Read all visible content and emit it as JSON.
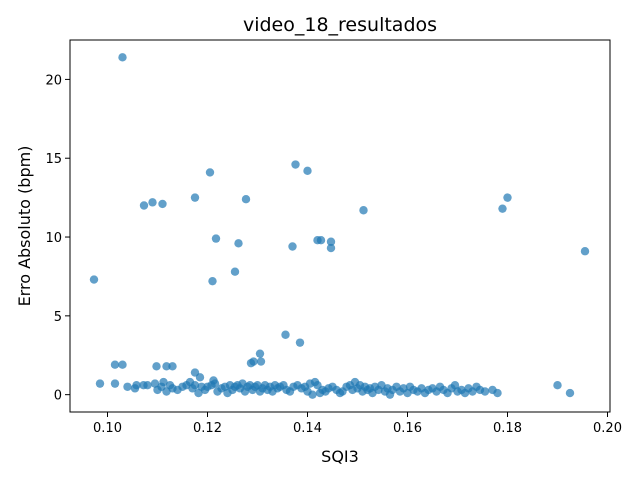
{
  "chart_data": {
    "type": "scatter",
    "title": "video_18_resultados",
    "xlabel": "SQI3",
    "ylabel": "Erro Absoluto (bpm)",
    "xlim": [
      0.0925,
      0.2005
    ],
    "ylim": [
      -1.1,
      22.5
    ],
    "xticks": [
      0.1,
      0.12,
      0.14,
      0.16,
      0.18,
      0.2
    ],
    "xtick_labels": [
      "0.10",
      "0.12",
      "0.14",
      "0.16",
      "0.18",
      "0.20"
    ],
    "yticks": [
      0,
      5,
      10,
      15,
      20
    ],
    "ytick_labels": [
      "0",
      "5",
      "10",
      "15",
      "20"
    ],
    "grid": false,
    "color": "#1f77b4",
    "alpha": 0.7,
    "points": [
      [
        0.103,
        21.4
      ],
      [
        0.1376,
        14.6
      ],
      [
        0.1205,
        14.1
      ],
      [
        0.14,
        14.2
      ],
      [
        0.1175,
        12.5
      ],
      [
        0.1073,
        12.0
      ],
      [
        0.109,
        12.2
      ],
      [
        0.111,
        12.1
      ],
      [
        0.1277,
        12.4
      ],
      [
        0.18,
        12.5
      ],
      [
        0.179,
        11.8
      ],
      [
        0.1512,
        11.7
      ],
      [
        0.1217,
        9.9
      ],
      [
        0.1262,
        9.6
      ],
      [
        0.142,
        9.8
      ],
      [
        0.1427,
        9.8
      ],
      [
        0.1447,
        9.7
      ],
      [
        0.1447,
        9.3
      ],
      [
        0.137,
        9.4
      ],
      [
        0.1955,
        9.1
      ],
      [
        0.1255,
        7.8
      ],
      [
        0.0973,
        7.3
      ],
      [
        0.121,
        7.2
      ],
      [
        0.1356,
        3.8
      ],
      [
        0.1385,
        3.3
      ],
      [
        0.1305,
        2.6
      ],
      [
        0.1292,
        2.1
      ],
      [
        0.1287,
        2.0
      ],
      [
        0.1307,
        2.1
      ],
      [
        0.1015,
        1.9
      ],
      [
        0.103,
        1.9
      ],
      [
        0.1098,
        1.8
      ],
      [
        0.1118,
        1.8
      ],
      [
        0.113,
        1.8
      ],
      [
        0.1175,
        1.4
      ],
      [
        0.1185,
        1.1
      ],
      [
        0.0985,
        0.7
      ],
      [
        0.1015,
        0.7
      ],
      [
        0.104,
        0.5
      ],
      [
        0.1055,
        0.4
      ],
      [
        0.1058,
        0.6
      ],
      [
        0.1072,
        0.6
      ],
      [
        0.108,
        0.6
      ],
      [
        0.1095,
        0.7
      ],
      [
        0.11,
        0.3
      ],
      [
        0.1108,
        0.5
      ],
      [
        0.1112,
        0.8
      ],
      [
        0.1118,
        0.2
      ],
      [
        0.1125,
        0.6
      ],
      [
        0.113,
        0.4
      ],
      [
        0.114,
        0.3
      ],
      [
        0.115,
        0.5
      ],
      [
        0.1158,
        0.6
      ],
      [
        0.1165,
        0.8
      ],
      [
        0.117,
        0.4
      ],
      [
        0.1175,
        0.6
      ],
      [
        0.1182,
        0.1
      ],
      [
        0.1188,
        0.5
      ],
      [
        0.1195,
        0.3
      ],
      [
        0.12,
        0.5
      ],
      [
        0.1208,
        0.6
      ],
      [
        0.1212,
        0.9
      ],
      [
        0.1215,
        0.7
      ],
      [
        0.122,
        0.2
      ],
      [
        0.1228,
        0.4
      ],
      [
        0.1235,
        0.5
      ],
      [
        0.124,
        0.1
      ],
      [
        0.1245,
        0.6
      ],
      [
        0.125,
        0.3
      ],
      [
        0.1255,
        0.5
      ],
      [
        0.126,
        0.6
      ],
      [
        0.1265,
        0.4
      ],
      [
        0.127,
        0.7
      ],
      [
        0.1275,
        0.2
      ],
      [
        0.128,
        0.5
      ],
      [
        0.1285,
        0.6
      ],
      [
        0.129,
        0.3
      ],
      [
        0.1295,
        0.5
      ],
      [
        0.13,
        0.6
      ],
      [
        0.1305,
        0.2
      ],
      [
        0.131,
        0.4
      ],
      [
        0.1315,
        0.6
      ],
      [
        0.132,
        0.3
      ],
      [
        0.1325,
        0.5
      ],
      [
        0.133,
        0.2
      ],
      [
        0.1335,
        0.6
      ],
      [
        0.134,
        0.4
      ],
      [
        0.1345,
        0.5
      ],
      [
        0.1352,
        0.6
      ],
      [
        0.1358,
        0.3
      ],
      [
        0.1365,
        0.2
      ],
      [
        0.1372,
        0.5
      ],
      [
        0.138,
        0.6
      ],
      [
        0.1388,
        0.4
      ],
      [
        0.1395,
        0.5
      ],
      [
        0.14,
        0.2
      ],
      [
        0.1405,
        0.7
      ],
      [
        0.141,
        0.0
      ],
      [
        0.1415,
        0.8
      ],
      [
        0.142,
        0.6
      ],
      [
        0.1425,
        0.1
      ],
      [
        0.143,
        0.3
      ],
      [
        0.1436,
        0.2
      ],
      [
        0.1442,
        0.4
      ],
      [
        0.145,
        0.5
      ],
      [
        0.1458,
        0.3
      ],
      [
        0.1465,
        0.1
      ],
      [
        0.147,
        0.2
      ],
      [
        0.1478,
        0.5
      ],
      [
        0.1485,
        0.6
      ],
      [
        0.149,
        0.3
      ],
      [
        0.1495,
        0.8
      ],
      [
        0.15,
        0.4
      ],
      [
        0.1505,
        0.6
      ],
      [
        0.151,
        0.2
      ],
      [
        0.1515,
        0.5
      ],
      [
        0.152,
        0.3
      ],
      [
        0.1525,
        0.4
      ],
      [
        0.153,
        0.1
      ],
      [
        0.1535,
        0.5
      ],
      [
        0.1542,
        0.3
      ],
      [
        0.1548,
        0.6
      ],
      [
        0.1555,
        0.2
      ],
      [
        0.156,
        0.4
      ],
      [
        0.1565,
        0.0
      ],
      [
        0.157,
        0.3
      ],
      [
        0.1578,
        0.5
      ],
      [
        0.1585,
        0.2
      ],
      [
        0.1592,
        0.4
      ],
      [
        0.16,
        0.1
      ],
      [
        0.1605,
        0.5
      ],
      [
        0.1612,
        0.3
      ],
      [
        0.162,
        0.2
      ],
      [
        0.1628,
        0.4
      ],
      [
        0.1635,
        0.1
      ],
      [
        0.1642,
        0.3
      ],
      [
        0.165,
        0.4
      ],
      [
        0.1658,
        0.2
      ],
      [
        0.1665,
        0.5
      ],
      [
        0.1672,
        0.3
      ],
      [
        0.168,
        0.1
      ],
      [
        0.1688,
        0.4
      ],
      [
        0.1695,
        0.6
      ],
      [
        0.17,
        0.2
      ],
      [
        0.1708,
        0.3
      ],
      [
        0.1715,
        0.1
      ],
      [
        0.1722,
        0.4
      ],
      [
        0.173,
        0.2
      ],
      [
        0.1738,
        0.5
      ],
      [
        0.1745,
        0.3
      ],
      [
        0.1755,
        0.2
      ],
      [
        0.177,
        0.3
      ],
      [
        0.178,
        0.1
      ],
      [
        0.19,
        0.6
      ],
      [
        0.1925,
        0.1
      ]
    ]
  }
}
